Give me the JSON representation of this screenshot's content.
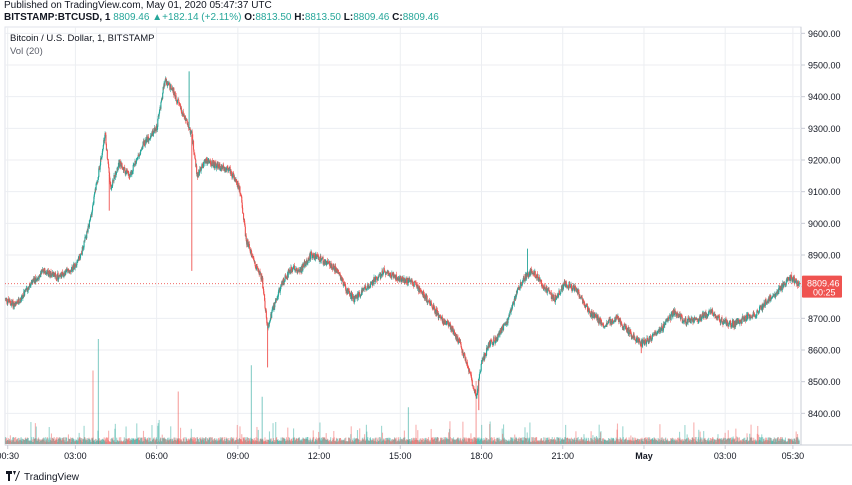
{
  "header": {
    "published": "Published on TradingView.com, May 01, 2020 05:47:37 UTC",
    "symbol": "BITSTAMP:BTCUSD, 1",
    "last": "8809.46",
    "change": "▲+182.14 (+2.11%)",
    "open_label": "O:",
    "open": "8813.50",
    "high_label": "H:",
    "high": "8813.50",
    "low_label": "L:",
    "low": "8809.46",
    "close_label": "C:",
    "close": "8809.46"
  },
  "legend": {
    "title": "Bitcoin / U.S. Dollar, 1, BITSTAMP",
    "volume": "Vol (20)"
  },
  "brand": {
    "name": "TradingView"
  },
  "colors": {
    "up": "#26a69a",
    "down": "#ef5350",
    "price_tag": "#ef5350",
    "grid": "#eceef2",
    "text": "#131722"
  },
  "chart_data": {
    "type": "candlestick",
    "title": "Bitcoin / U.S. Dollar, 1, BITSTAMP",
    "ylabel": "",
    "xlabel": "",
    "ylim": [
      8300,
      9620
    ],
    "y_ticks": [
      9600,
      9500,
      9400,
      9300,
      9200,
      9100,
      9000,
      8900,
      8800,
      8700,
      8600,
      8500,
      8400
    ],
    "x_ticks": [
      {
        "label": "00:30",
        "hour": 0.5
      },
      {
        "label": "03:00",
        "hour": 3
      },
      {
        "label": "06:00",
        "hour": 6
      },
      {
        "label": "09:00",
        "hour": 9
      },
      {
        "label": "12:00",
        "hour": 12
      },
      {
        "label": "15:00",
        "hour": 15
      },
      {
        "label": "18:00",
        "hour": 18
      },
      {
        "label": "21:00",
        "hour": 21
      },
      {
        "label": "May",
        "hour": 24
      },
      {
        "label": "03:00",
        "hour": 27
      },
      {
        "label": "05:30",
        "hour": 29.5
      }
    ],
    "x_range_hours": [
      0.4,
      29.8
    ],
    "price_path": [
      [
        0.4,
        8760
      ],
      [
        0.8,
        8740
      ],
      [
        1.3,
        8800
      ],
      [
        1.8,
        8850
      ],
      [
        2.4,
        8830
      ],
      [
        2.9,
        8860
      ],
      [
        3.2,
        8900
      ],
      [
        3.5,
        8990
      ],
      [
        3.9,
        9180
      ],
      [
        4.1,
        9280
      ],
      [
        4.3,
        9110
      ],
      [
        4.6,
        9190
      ],
      [
        5.0,
        9150
      ],
      [
        5.5,
        9250
      ],
      [
        6.0,
        9300
      ],
      [
        6.3,
        9450
      ],
      [
        6.6,
        9420
      ],
      [
        7.0,
        9340
      ],
      [
        7.3,
        9280
      ],
      [
        7.5,
        9150
      ],
      [
        7.8,
        9200
      ],
      [
        8.2,
        9180
      ],
      [
        8.7,
        9170
      ],
      [
        9.1,
        9100
      ],
      [
        9.3,
        8950
      ],
      [
        9.6,
        8880
      ],
      [
        9.9,
        8820
      ],
      [
        10.1,
        8670
      ],
      [
        10.4,
        8760
      ],
      [
        10.7,
        8820
      ],
      [
        11.0,
        8860
      ],
      [
        11.3,
        8850
      ],
      [
        11.7,
        8900
      ],
      [
        12.2,
        8880
      ],
      [
        12.7,
        8850
      ],
      [
        13.0,
        8790
      ],
      [
        13.3,
        8760
      ],
      [
        13.8,
        8800
      ],
      [
        14.4,
        8850
      ],
      [
        14.9,
        8830
      ],
      [
        15.5,
        8810
      ],
      [
        16.0,
        8760
      ],
      [
        16.5,
        8700
      ],
      [
        16.9,
        8670
      ],
      [
        17.2,
        8620
      ],
      [
        17.5,
        8550
      ],
      [
        17.8,
        8450
      ],
      [
        18.0,
        8560
      ],
      [
        18.3,
        8620
      ],
      [
        18.6,
        8640
      ],
      [
        19.0,
        8700
      ],
      [
        19.3,
        8780
      ],
      [
        19.6,
        8830
      ],
      [
        19.9,
        8850
      ],
      [
        20.3,
        8800
      ],
      [
        20.7,
        8760
      ],
      [
        21.1,
        8810
      ],
      [
        21.5,
        8790
      ],
      [
        22.0,
        8720
      ],
      [
        22.5,
        8680
      ],
      [
        23.0,
        8700
      ],
      [
        23.4,
        8660
      ],
      [
        23.9,
        8620
      ],
      [
        24.3,
        8640
      ],
      [
        24.7,
        8670
      ],
      [
        25.1,
        8720
      ],
      [
        25.5,
        8690
      ],
      [
        26.0,
        8700
      ],
      [
        26.5,
        8720
      ],
      [
        26.9,
        8690
      ],
      [
        27.3,
        8680
      ],
      [
        27.7,
        8700
      ],
      [
        28.2,
        8720
      ],
      [
        28.6,
        8760
      ],
      [
        29.0,
        8790
      ],
      [
        29.4,
        8830
      ],
      [
        29.7,
        8809.46
      ]
    ],
    "wicks": [
      {
        "hour": 4.25,
        "low": 9040
      },
      {
        "hour": 7.3,
        "low": 8850
      },
      {
        "hour": 7.2,
        "high": 9480
      },
      {
        "hour": 10.1,
        "low": 8545
      },
      {
        "hour": 17.9,
        "low": 8410
      },
      {
        "hour": 19.7,
        "high": 8920
      },
      {
        "hour": 23.9,
        "low": 8590
      }
    ],
    "current_price": "8809.46",
    "current_price_value": 8809.46,
    "countdown": "00:25",
    "volume_series": "Vol (20)",
    "volume_spikes": [
      {
        "hour": 3.85,
        "value": 1.0
      },
      {
        "hour": 3.65,
        "value": 0.7
      },
      {
        "hour": 9.5,
        "value": 0.75
      },
      {
        "hour": 17.8,
        "value": 0.6
      },
      {
        "hour": 9.9,
        "value": 0.45
      },
      {
        "hour": 6.8,
        "value": 0.5
      },
      {
        "hour": 15.3,
        "value": 0.35
      }
    ]
  }
}
